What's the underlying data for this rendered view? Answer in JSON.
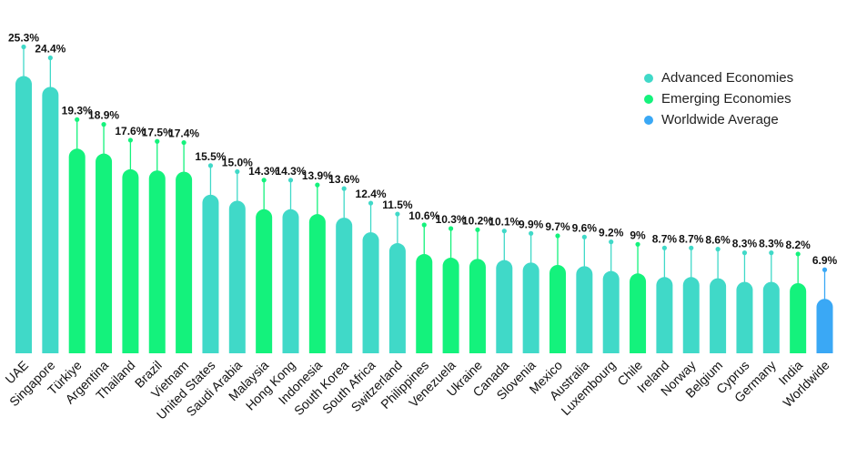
{
  "chart_data": {
    "type": "bar",
    "categories": [
      "UAE",
      "Singapore",
      "Türkiye",
      "Argentina",
      "Thailand",
      "Brazil",
      "Vietnam",
      "United States",
      "Saudi Arabia",
      "Malaysia",
      "Hong Kong",
      "Indonesia",
      "South Korea",
      "South Africa",
      "Switzerland",
      "Philippines",
      "Venezuela",
      "Ukraine",
      "Canada",
      "Slovenia",
      "Mexico",
      "Australia",
      "Luxembourg",
      "Chile",
      "Ireland",
      "Norway",
      "Belgium",
      "Cyprus",
      "Germany",
      "India",
      "Worldwide"
    ],
    "values": [
      25.3,
      24.4,
      19.3,
      18.9,
      17.6,
      17.5,
      17.4,
      15.5,
      15.0,
      14.3,
      14.3,
      13.9,
      13.6,
      12.4,
      11.5,
      10.6,
      10.3,
      10.2,
      10.1,
      9.9,
      9.7,
      9.6,
      9.2,
      9.0,
      8.7,
      8.7,
      8.6,
      8.3,
      8.3,
      8.2,
      6.9
    ],
    "value_labels": [
      "25.3%",
      "24.4%",
      "19.3%",
      "18.9%",
      "17.6%",
      "17.5%",
      "17.4%",
      "15.5%",
      "15.0%",
      "14.3%",
      "14.3%",
      "13.9%",
      "13.6%",
      "12.4%",
      "11.5%",
      "10.6%",
      "10.3%",
      "10.2%",
      "10.1%",
      "9.9%",
      "9.7%",
      "9.6%",
      "9.2%",
      "9%",
      "8.7%",
      "8.7%",
      "8.6%",
      "8.3%",
      "8.3%",
      "8.2%",
      "6.9%"
    ],
    "groups": [
      "advanced",
      "advanced",
      "emerging",
      "emerging",
      "emerging",
      "emerging",
      "emerging",
      "advanced",
      "advanced",
      "emerging",
      "advanced",
      "emerging",
      "advanced",
      "advanced",
      "advanced",
      "emerging",
      "emerging",
      "emerging",
      "advanced",
      "advanced",
      "emerging",
      "advanced",
      "advanced",
      "emerging",
      "advanced",
      "advanced",
      "advanced",
      "advanced",
      "advanced",
      "emerging",
      "worldwide"
    ],
    "legend": [
      {
        "key": "advanced",
        "label": "Advanced Economies",
        "color": "#40d9c8"
      },
      {
        "key": "emerging",
        "label": "Emerging Economies",
        "color": "#14f27c"
      },
      {
        "key": "worldwide",
        "label": "Worldwide Average",
        "color": "#3aa8f5"
      }
    ],
    "legend_position": "top-right",
    "ylim": [
      0,
      26
    ],
    "grid": false
  }
}
